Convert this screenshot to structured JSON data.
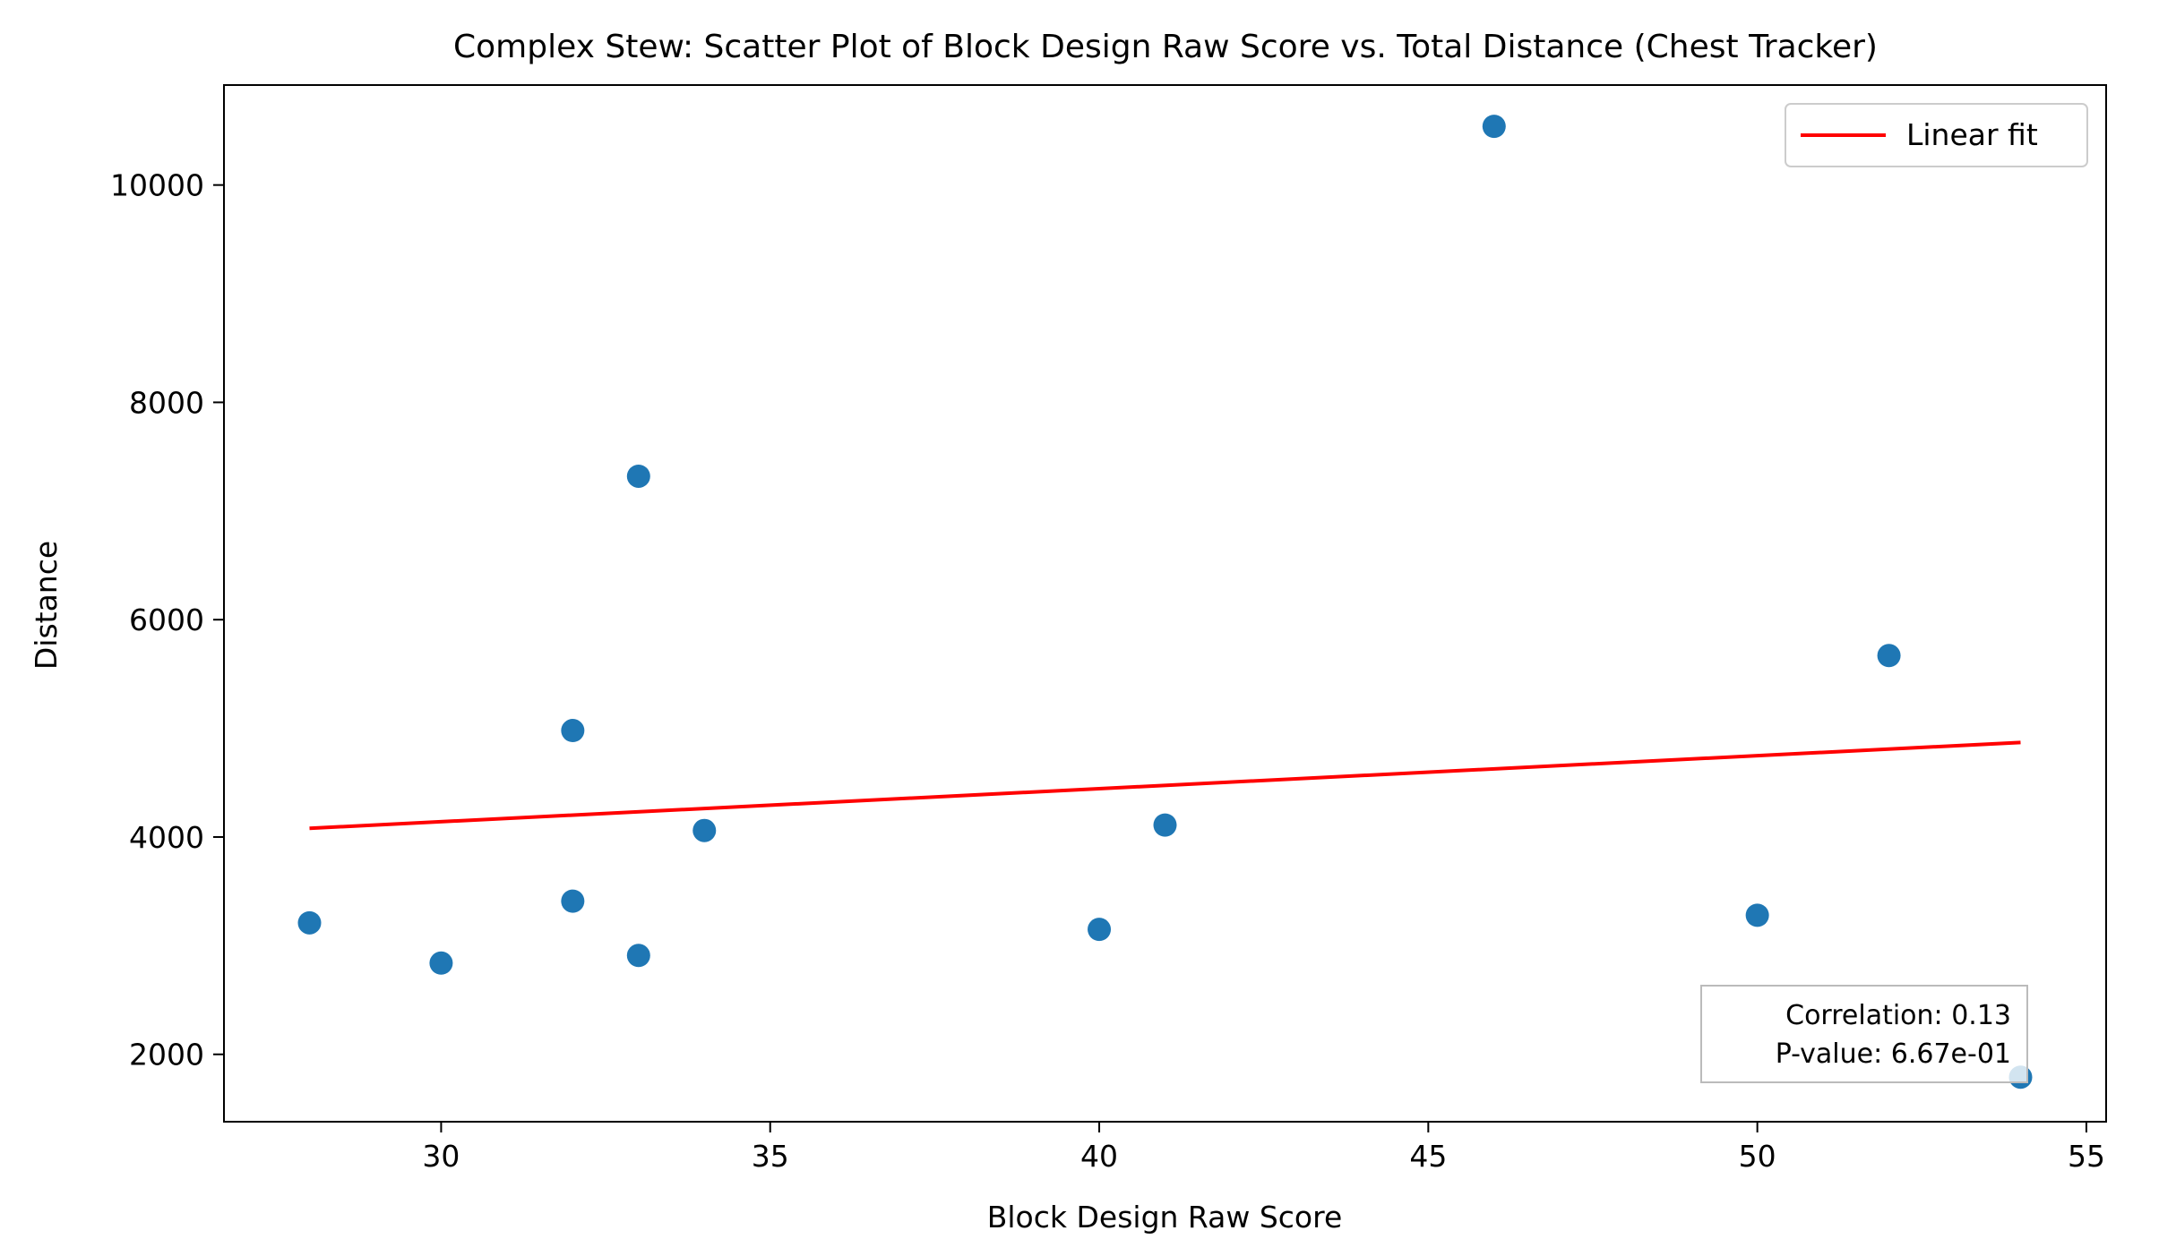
{
  "chart_data": {
    "type": "scatter",
    "title": "Complex Stew: Scatter Plot of Block Design Raw Score vs. Total Distance (Chest Tracker)",
    "xlabel": "Block Design Raw Score",
    "ylabel": "Distance",
    "xlim": [
      26.7,
      55.3
    ],
    "ylim": [
      1380,
      10920
    ],
    "xticks": [
      30,
      35,
      40,
      45,
      50,
      55
    ],
    "yticks": [
      2000,
      4000,
      6000,
      8000,
      10000
    ],
    "grid": false,
    "legend": {
      "position": "top-right",
      "entries": [
        "Linear fit"
      ]
    },
    "points": {
      "color": "#1f77b4",
      "x": [
        28,
        30,
        32,
        32,
        33,
        33,
        34,
        40,
        41,
        46,
        50,
        52,
        54
      ],
      "y": [
        3210,
        2840,
        4980,
        3410,
        7320,
        2910,
        4060,
        3150,
        4110,
        10540,
        3280,
        5670,
        1790
      ]
    },
    "fit": {
      "name": "Linear fit",
      "color": "#ff0000",
      "x": [
        28,
        54
      ],
      "y": [
        4080,
        4870
      ]
    },
    "annotation": {
      "position": "bottom-right",
      "lines": [
        "Correlation: 0.13",
        "P-value: 6.67e-01"
      ]
    }
  }
}
